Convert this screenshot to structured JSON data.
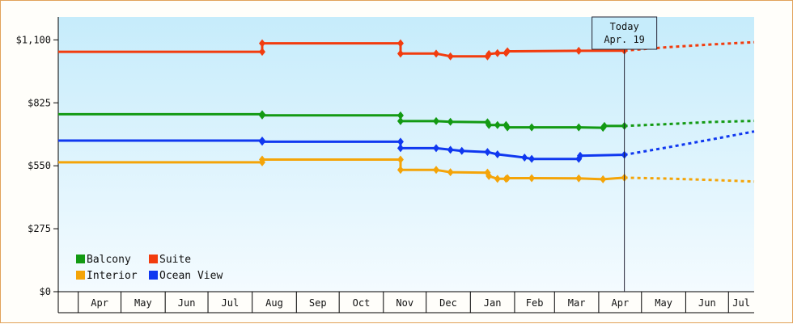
{
  "chart_data": {
    "type": "line",
    "title": "",
    "xlabel": "",
    "ylabel": "",
    "ylim": [
      0,
      1200
    ],
    "yticks": [
      {
        "value": 0,
        "label": "$0"
      },
      {
        "value": 275,
        "label": "$275"
      },
      {
        "value": 550,
        "label": "$550"
      },
      {
        "value": 825,
        "label": "$825"
      },
      {
        "value": 1100,
        "label": "$1,100"
      }
    ],
    "x_range": [
      "2018-03-18",
      "2019-07-19"
    ],
    "month_ticks": [
      {
        "label": "Apr",
        "start": "2018-04-01",
        "end": "2018-05-01"
      },
      {
        "label": "May",
        "start": "2018-05-01",
        "end": "2018-06-01"
      },
      {
        "label": "Jun",
        "start": "2018-06-01",
        "end": "2018-07-01"
      },
      {
        "label": "Jul",
        "start": "2018-07-01",
        "end": "2018-08-01"
      },
      {
        "label": "Aug",
        "start": "2018-08-01",
        "end": "2018-09-01"
      },
      {
        "label": "Sep",
        "start": "2018-09-01",
        "end": "2018-10-01"
      },
      {
        "label": "Oct",
        "start": "2018-10-01",
        "end": "2018-11-01"
      },
      {
        "label": "Nov",
        "start": "2018-11-01",
        "end": "2018-12-01"
      },
      {
        "label": "Dec",
        "start": "2018-12-01",
        "end": "2019-01-01"
      },
      {
        "label": "Jan",
        "start": "2019-01-01",
        "end": "2019-02-01"
      },
      {
        "label": "Feb",
        "start": "2019-02-01",
        "end": "2019-03-01"
      },
      {
        "label": "Mar",
        "start": "2019-03-01",
        "end": "2019-04-01"
      },
      {
        "label": "Apr",
        "start": "2019-04-01",
        "end": "2019-05-01"
      },
      {
        "label": "May",
        "start": "2019-05-01",
        "end": "2019-06-01"
      },
      {
        "label": "Jun",
        "start": "2019-06-01",
        "end": "2019-07-01"
      },
      {
        "label": "Jul",
        "start": "2019-07-01",
        "end": "2019-07-19"
      }
    ],
    "today": {
      "label_line1": "Today",
      "label_line2": "Apr. 19",
      "date": "2019-04-19"
    },
    "legend": {
      "placement": "bottom-left"
    },
    "series": [
      {
        "name": "Balcony",
        "color": "#139a13",
        "points": [
          {
            "date": "2018-03-18",
            "value": 775
          },
          {
            "date": "2018-08-08",
            "value": 775
          },
          {
            "date": "2018-08-08",
            "value": 770
          },
          {
            "date": "2018-11-13",
            "value": 770
          },
          {
            "date": "2018-11-13",
            "value": 745
          },
          {
            "date": "2018-12-08",
            "value": 745
          },
          {
            "date": "2018-12-18",
            "value": 742
          },
          {
            "date": "2019-01-13",
            "value": 740
          },
          {
            "date": "2019-01-14",
            "value": 728
          },
          {
            "date": "2019-01-20",
            "value": 728
          },
          {
            "date": "2019-01-26",
            "value": 728
          },
          {
            "date": "2019-01-27",
            "value": 718
          },
          {
            "date": "2019-02-13",
            "value": 718
          },
          {
            "date": "2019-03-18",
            "value": 718
          },
          {
            "date": "2019-04-04",
            "value": 716
          },
          {
            "date": "2019-04-05",
            "value": 724
          },
          {
            "date": "2019-04-19",
            "value": 724
          }
        ],
        "forecast": [
          {
            "date": "2019-04-19",
            "value": 724
          },
          {
            "date": "2019-05-19",
            "value": 732
          },
          {
            "date": "2019-06-19",
            "value": 741
          },
          {
            "date": "2019-07-19",
            "value": 746
          }
        ]
      },
      {
        "name": "Suite",
        "color": "#f23c0e",
        "points": [
          {
            "date": "2018-03-18",
            "value": 1048
          },
          {
            "date": "2018-08-08",
            "value": 1048
          },
          {
            "date": "2018-08-08",
            "value": 1085
          },
          {
            "date": "2018-11-13",
            "value": 1085
          },
          {
            "date": "2018-11-13",
            "value": 1040
          },
          {
            "date": "2018-12-08",
            "value": 1040
          },
          {
            "date": "2018-12-18",
            "value": 1028
          },
          {
            "date": "2019-01-13",
            "value": 1028
          },
          {
            "date": "2019-01-14",
            "value": 1038
          },
          {
            "date": "2019-01-20",
            "value": 1042
          },
          {
            "date": "2019-01-26",
            "value": 1043
          },
          {
            "date": "2019-01-27",
            "value": 1050
          },
          {
            "date": "2019-03-18",
            "value": 1052
          },
          {
            "date": "2019-04-19",
            "value": 1053
          }
        ],
        "forecast": [
          {
            "date": "2019-04-19",
            "value": 1053
          },
          {
            "date": "2019-05-19",
            "value": 1068
          },
          {
            "date": "2019-06-19",
            "value": 1080
          },
          {
            "date": "2019-07-19",
            "value": 1090
          }
        ]
      },
      {
        "name": "Interior",
        "color": "#f4a408",
        "points": [
          {
            "date": "2018-03-18",
            "value": 565
          },
          {
            "date": "2018-08-08",
            "value": 565
          },
          {
            "date": "2018-08-08",
            "value": 577
          },
          {
            "date": "2018-11-13",
            "value": 577
          },
          {
            "date": "2018-11-13",
            "value": 532
          },
          {
            "date": "2018-12-08",
            "value": 532
          },
          {
            "date": "2018-12-18",
            "value": 522
          },
          {
            "date": "2019-01-13",
            "value": 520
          },
          {
            "date": "2019-01-14",
            "value": 505
          },
          {
            "date": "2019-01-20",
            "value": 493
          },
          {
            "date": "2019-01-26",
            "value": 493
          },
          {
            "date": "2019-01-27",
            "value": 496
          },
          {
            "date": "2019-02-13",
            "value": 496
          },
          {
            "date": "2019-03-18",
            "value": 495
          },
          {
            "date": "2019-04-04",
            "value": 491
          },
          {
            "date": "2019-04-19",
            "value": 498
          }
        ],
        "forecast": [
          {
            "date": "2019-04-19",
            "value": 498
          },
          {
            "date": "2019-05-19",
            "value": 494
          },
          {
            "date": "2019-06-19",
            "value": 488
          },
          {
            "date": "2019-07-19",
            "value": 481
          }
        ]
      },
      {
        "name": "Ocean View",
        "color": "#1038f0",
        "points": [
          {
            "date": "2018-03-18",
            "value": 660
          },
          {
            "date": "2018-08-08",
            "value": 660
          },
          {
            "date": "2018-08-08",
            "value": 655
          },
          {
            "date": "2018-11-13",
            "value": 655
          },
          {
            "date": "2018-11-13",
            "value": 627
          },
          {
            "date": "2018-12-08",
            "value": 627
          },
          {
            "date": "2018-12-18",
            "value": 620
          },
          {
            "date": "2018-12-26",
            "value": 615
          },
          {
            "date": "2019-01-13",
            "value": 610
          },
          {
            "date": "2019-01-20",
            "value": 600
          },
          {
            "date": "2019-02-08",
            "value": 586
          },
          {
            "date": "2019-02-13",
            "value": 580
          },
          {
            "date": "2019-03-18",
            "value": 580
          },
          {
            "date": "2019-03-19",
            "value": 594
          },
          {
            "date": "2019-04-19",
            "value": 598
          }
        ],
        "forecast": [
          {
            "date": "2019-04-19",
            "value": 598
          },
          {
            "date": "2019-05-19",
            "value": 630
          },
          {
            "date": "2019-06-19",
            "value": 665
          },
          {
            "date": "2019-07-19",
            "value": 700
          }
        ]
      }
    ]
  }
}
